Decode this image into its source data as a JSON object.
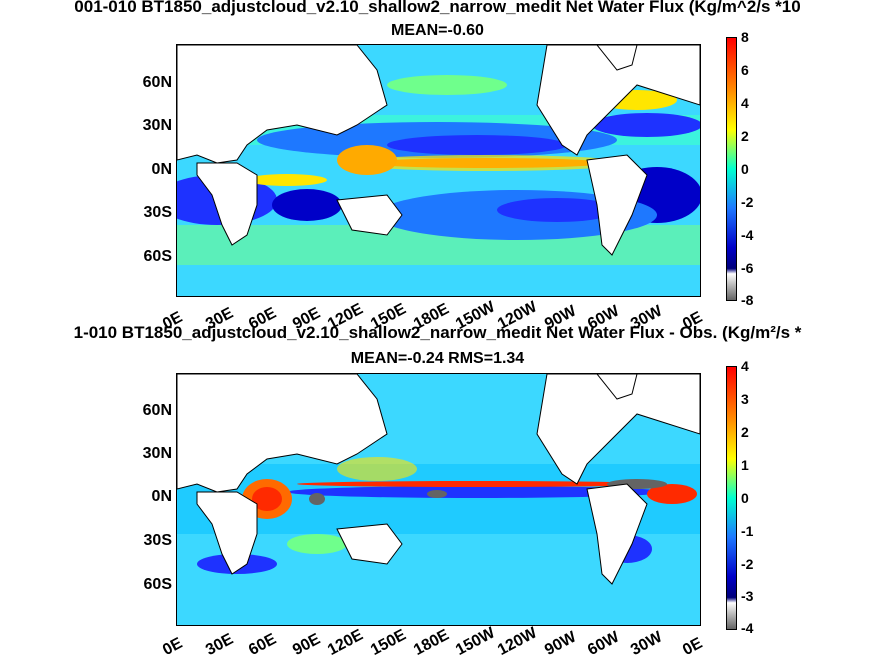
{
  "panels": [
    {
      "title": "001-010 BT1850_adjustcloud_v2.10_shallow2_narrow_medit  Net Water Flux (Kg/m^2/s *10",
      "mean": "MEAN=-0.60",
      "lat_labels": [
        "60N",
        "30N",
        "0N",
        "30S",
        "60S"
      ],
      "lon_labels": [
        "0E",
        "30E",
        "60E",
        "90E",
        "120E",
        "150E",
        "180E",
        "150W",
        "120W",
        "90W",
        "60W",
        "30W",
        "0E"
      ],
      "colorbar_ticks": [
        "8",
        "6",
        "4",
        "2",
        "0",
        "-2",
        "-4",
        "-6",
        "-8"
      ]
    },
    {
      "title": "1-010 BT1850_adjustcloud_v2.10_shallow2_narrow_medit  Net Water Flux - Obs. (Kg/m²/s *",
      "mean": "MEAN=-0.24 RMS=1.34",
      "lat_labels": [
        "60N",
        "30N",
        "0N",
        "30S",
        "60S"
      ],
      "lon_labels": [
        "0E",
        "30E",
        "60E",
        "90E",
        "120E",
        "150E",
        "180E",
        "150W",
        "120W",
        "90W",
        "60W",
        "30W",
        "0E"
      ],
      "colorbar_ticks": [
        "4",
        "3",
        "2",
        "1",
        "0",
        "-1",
        "-2",
        "-3",
        "-4"
      ]
    }
  ],
  "colormap": [
    "#ff2a00",
    "#ff6a00",
    "#ffaa00",
    "#ffe600",
    "#c8ff38",
    "#6fff8c",
    "#3cffd0",
    "#18c8ff",
    "#1e78ff",
    "#1e32ff",
    "#0000c8",
    "#00007a",
    "#bebebe",
    "#646464"
  ]
}
